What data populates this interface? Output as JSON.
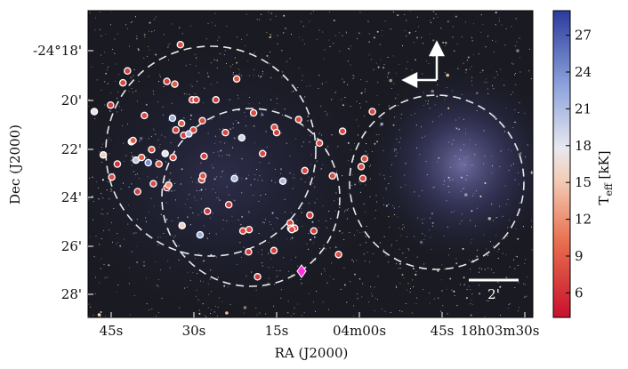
{
  "chart_data": {
    "type": "scatter",
    "title": "",
    "xlabel": "RA (J2000)",
    "ylabel": "Dec (J2000)",
    "x_ticks": [
      "45s",
      "30s",
      "15s",
      "04m00s",
      "45s",
      "18h03m30s"
    ],
    "y_ticks": [
      "-24°18'",
      "20'",
      "22'",
      "24'",
      "26'",
      "28'"
    ],
    "colorbar": {
      "label_main": "T",
      "label_sub": "eff",
      "label_unit": " [kK]",
      "ticks": [
        "6",
        "9",
        "12",
        "15",
        "18",
        "21",
        "24",
        "27"
      ],
      "range": [
        4,
        29
      ],
      "low_color": "#c8102e",
      "mid_color": "#f2f2f2",
      "high_color": "#2b3a9e"
    },
    "scale_bar_label": "2'",
    "points_note_units": "RA seconds offset past 18h03m, Dec arcmin below -24°; teff in kK",
    "points": [
      {
        "ra": 48.9,
        "dec": 21.05,
        "teff": 17.5
      },
      {
        "ra": 47.3,
        "dec": 22.7,
        "teff": 15.5
      },
      {
        "ra": 46.0,
        "dec": 20.8,
        "teff": 7.0
      },
      {
        "ra": 45.8,
        "dec": 23.55,
        "teff": 8.0
      },
      {
        "ra": 44.8,
        "dec": 23.05,
        "teff": 6.0
      },
      {
        "ra": 43.8,
        "dec": 19.95,
        "teff": 7.5
      },
      {
        "ra": 43.0,
        "dec": 19.5,
        "teff": 7.0
      },
      {
        "ra": 42.3,
        "dec": 22.2,
        "teff": 17.0
      },
      {
        "ra": 42.0,
        "dec": 22.15,
        "teff": 9.0
      },
      {
        "ra": 41.5,
        "dec": 22.9,
        "teff": 20.0
      },
      {
        "ra": 41.2,
        "dec": 24.1,
        "teff": 7.0
      },
      {
        "ra": 40.5,
        "dec": 22.8,
        "teff": 9.0
      },
      {
        "ra": 40.0,
        "dec": 21.2,
        "teff": 8.0
      },
      {
        "ra": 39.3,
        "dec": 23.0,
        "teff": 24.0
      },
      {
        "ra": 38.7,
        "dec": 22.5,
        "teff": 8.5
      },
      {
        "ra": 38.4,
        "dec": 23.8,
        "teff": 8.0
      },
      {
        "ra": 37.4,
        "dec": 23.05,
        "teff": 9.0
      },
      {
        "ra": 36.3,
        "dec": 22.65,
        "teff": 18.0
      },
      {
        "ra": 36.0,
        "dec": 19.9,
        "teff": 7.0
      },
      {
        "ra": 36.0,
        "dec": 23.95,
        "teff": 6.0
      },
      {
        "ra": 35.7,
        "dec": 23.85,
        "teff": 12.0
      },
      {
        "ra": 35.0,
        "dec": 21.3,
        "teff": 22.0
      },
      {
        "ra": 34.9,
        "dec": 22.8,
        "teff": 8.0
      },
      {
        "ra": 34.6,
        "dec": 20.0,
        "teff": 9.0
      },
      {
        "ra": 34.4,
        "dec": 21.75,
        "teff": 7.0
      },
      {
        "ra": 33.6,
        "dec": 18.5,
        "teff": 8.0
      },
      {
        "ra": 33.4,
        "dec": 21.5,
        "teff": 9.5
      },
      {
        "ra": 33.3,
        "dec": 25.4,
        "teff": 16.0
      },
      {
        "ra": 33.0,
        "dec": 21.95,
        "teff": 7.0
      },
      {
        "ra": 32.1,
        "dec": 21.9,
        "teff": 21.0
      },
      {
        "ra": 31.5,
        "dec": 20.6,
        "teff": 8.0
      },
      {
        "ra": 31.3,
        "dec": 21.75,
        "teff": 7.5
      },
      {
        "ra": 30.8,
        "dec": 20.6,
        "teff": 7.5
      },
      {
        "ra": 30.1,
        "dec": 25.75,
        "teff": 22.0
      },
      {
        "ra": 29.8,
        "dec": 23.65,
        "teff": 8.0
      },
      {
        "ra": 29.7,
        "dec": 21.4,
        "teff": 8.0
      },
      {
        "ra": 29.6,
        "dec": 23.5,
        "teff": 8.5
      },
      {
        "ra": 29.4,
        "dec": 22.75,
        "teff": 7.0
      },
      {
        "ra": 28.8,
        "dec": 24.85,
        "teff": 6.5
      },
      {
        "ra": 27.3,
        "dec": 20.6,
        "teff": 7.0
      },
      {
        "ra": 25.6,
        "dec": 21.85,
        "teff": 7.5
      },
      {
        "ra": 25.0,
        "dec": 24.6,
        "teff": 7.0
      },
      {
        "ra": 24.0,
        "dec": 23.6,
        "teff": 21.0
      },
      {
        "ra": 23.6,
        "dec": 19.8,
        "teff": 8.5
      },
      {
        "ra": 22.7,
        "dec": 22.05,
        "teff": 19.0
      },
      {
        "ra": 22.5,
        "dec": 25.6,
        "teff": 8.0
      },
      {
        "ra": 21.5,
        "dec": 26.4,
        "teff": 7.0
      },
      {
        "ra": 21.4,
        "dec": 25.55,
        "teff": 7.5
      },
      {
        "ra": 20.6,
        "dec": 21.1,
        "teff": 8.0
      },
      {
        "ra": 19.9,
        "dec": 27.35,
        "teff": 7.0
      },
      {
        "ra": 19.0,
        "dec": 22.65,
        "teff": 7.5
      },
      {
        "ra": 17.0,
        "dec": 26.35,
        "teff": 7.0
      },
      {
        "ra": 16.9,
        "dec": 21.65,
        "teff": 8.0
      },
      {
        "ra": 16.5,
        "dec": 21.85,
        "teff": 7.0
      },
      {
        "ra": 15.4,
        "dec": 23.7,
        "teff": 21.0
      },
      {
        "ra": 14.1,
        "dec": 25.3,
        "teff": 7.5
      },
      {
        "ra": 14.0,
        "dec": 25.5,
        "teff": 8.0
      },
      {
        "ra": 13.3,
        "dec": 25.5,
        "teff": 7.5
      },
      {
        "ra": 13.8,
        "dec": 25.55,
        "teff": 8.0
      },
      {
        "ra": 12.6,
        "dec": 21.35,
        "teff": 8.0
      },
      {
        "ra": 11.5,
        "dec": 23.3,
        "teff": 7.5
      },
      {
        "ra": 10.6,
        "dec": 25.0,
        "teff": 7.0
      },
      {
        "ra": 9.9,
        "dec": 25.6,
        "teff": 7.0
      },
      {
        "ra": 8.9,
        "dec": 22.25,
        "teff": 8.0
      },
      {
        "ra": 6.6,
        "dec": 23.5,
        "teff": 8.0
      },
      {
        "ra": 5.5,
        "dec": 26.5,
        "teff": 8.0
      },
      {
        "ra": 4.8,
        "dec": 21.8,
        "teff": 7.5
      },
      {
        "ra": 1.5,
        "dec": 23.15,
        "teff": 8.0
      },
      {
        "ra": 1.2,
        "dec": 23.6,
        "teff": 7.5
      },
      {
        "ra": 0.9,
        "dec": 22.85,
        "teff": 8.0
      },
      {
        "ra": -0.5,
        "dec": 21.05,
        "teff": 7.5
      }
    ]
  }
}
